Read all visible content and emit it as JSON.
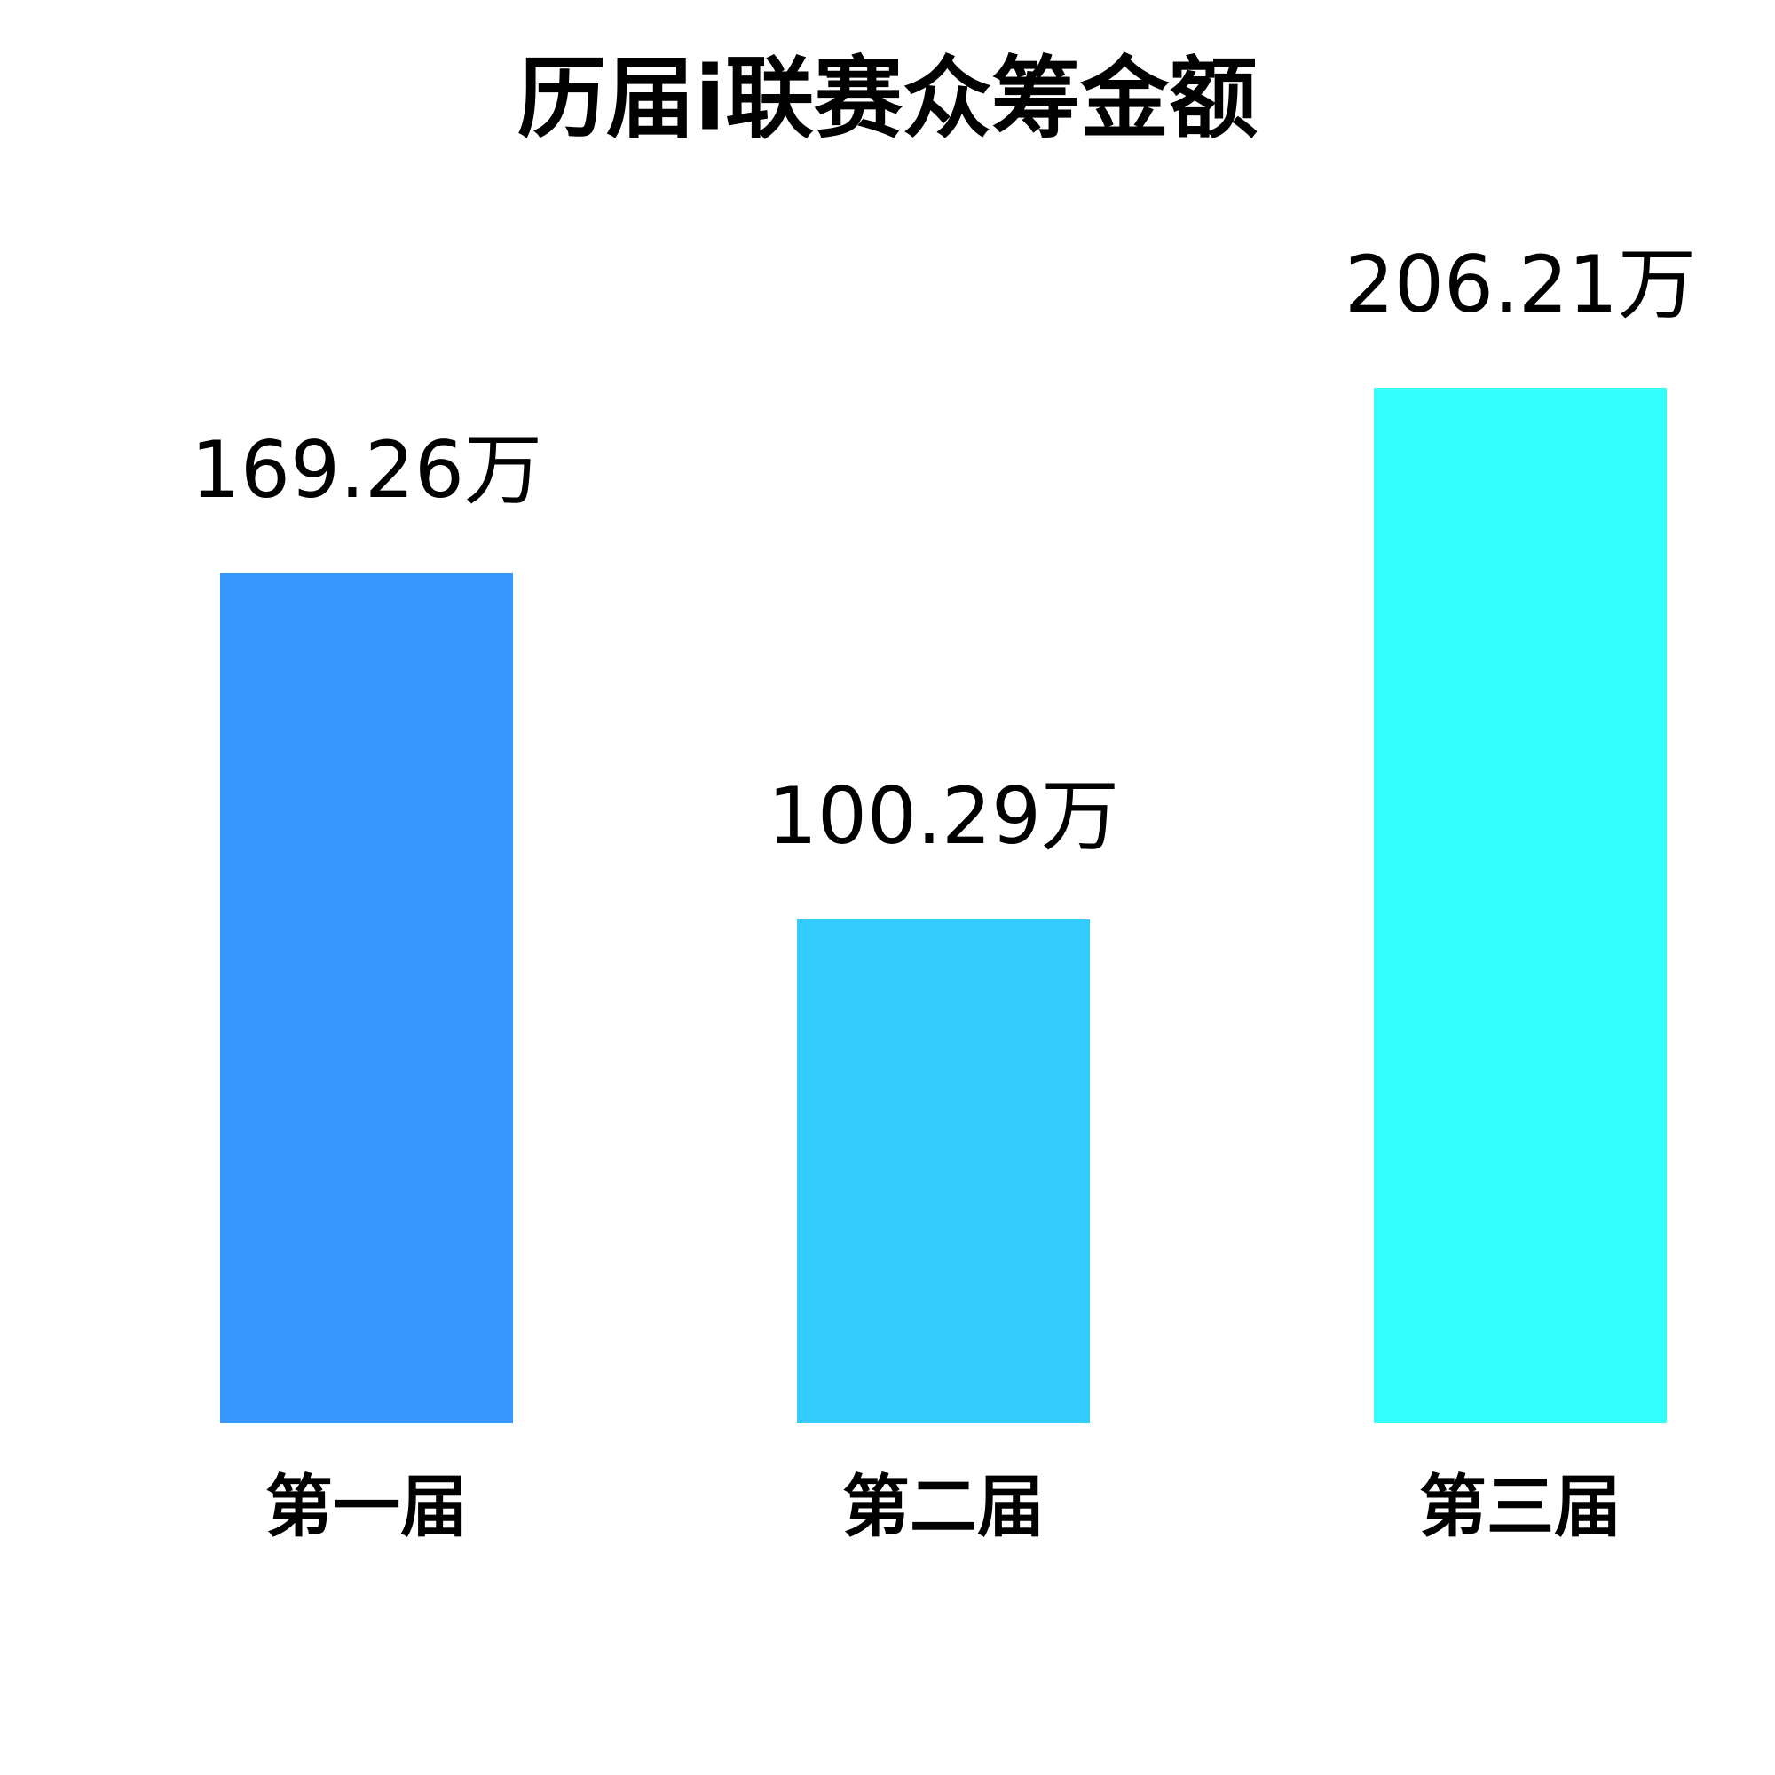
{
  "chart_data": {
    "type": "bar",
    "title": "历届i联赛众筹金额",
    "categories": [
      "第一届",
      "第二届",
      "第三届"
    ],
    "values": [
      169.26,
      100.29,
      206.21
    ],
    "value_labels": [
      "169.26万",
      "100.29万",
      "206.21万"
    ],
    "colors": [
      "#3897fd",
      "#33ccfd",
      "#33fffd"
    ]
  }
}
